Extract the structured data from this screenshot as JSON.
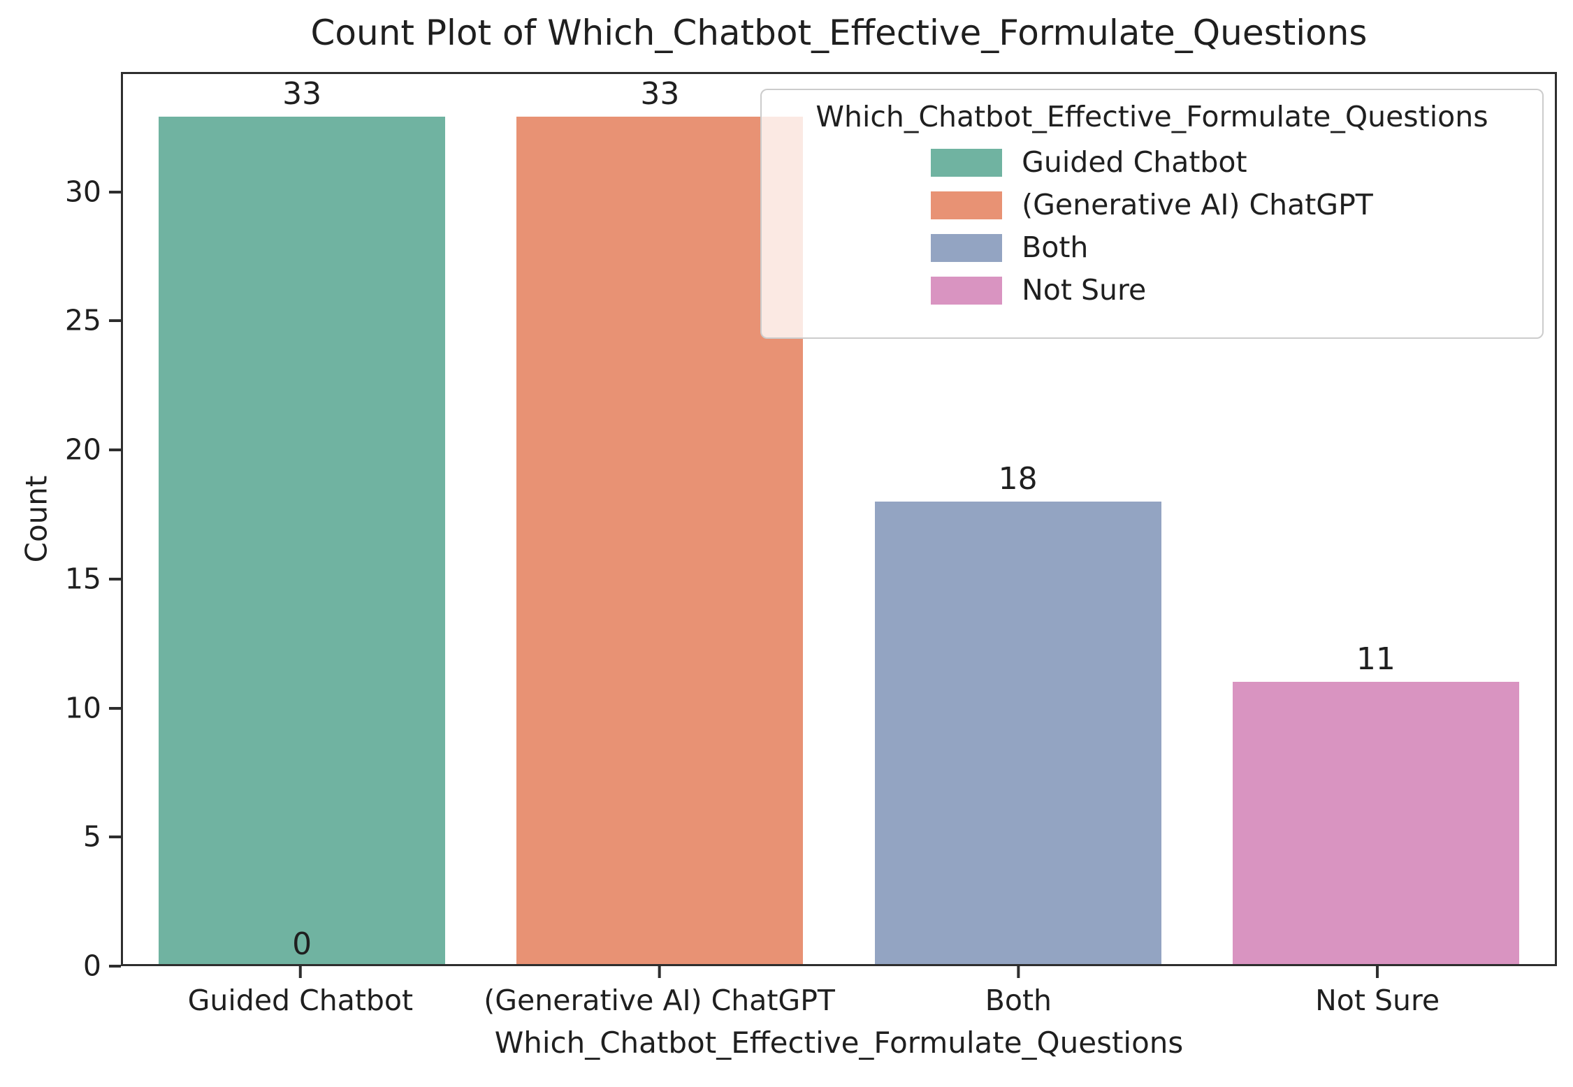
{
  "chart_data": {
    "type": "bar",
    "title": "Count Plot of Which_Chatbot_Effective_Formulate_Questions",
    "xlabel": "Which_Chatbot_Effective_Formulate_Questions",
    "ylabel": "Count",
    "categories": [
      "Guided Chatbot",
      "(Generative AI) ChatGPT",
      "Both",
      "Not Sure"
    ],
    "values": [
      33,
      33,
      18,
      11
    ],
    "bar_value_labels": [
      "33",
      "33",
      "18",
      "11"
    ],
    "annotations": [
      {
        "category_index": 0,
        "text": "0",
        "position": "above-x-axis-at-bar-center"
      }
    ],
    "bar_colors": [
      "#70b3a1",
      "#e89274",
      "#93a4c2",
      "#d994c1"
    ],
    "bar_width_fraction": 0.8,
    "ylim": [
      0,
      34.65
    ],
    "yticks": [
      0,
      5,
      10,
      15,
      20,
      25,
      30
    ],
    "grid": false,
    "spine_color": "#2e2e2e",
    "text_color": "#1f1f1f",
    "legend": {
      "position": "upper-right",
      "title": "Which_Chatbot_Effective_Formulate_Questions",
      "entries": [
        {
          "label": "Guided Chatbot",
          "color": "#70b3a1"
        },
        {
          "label": "(Generative AI) ChatGPT",
          "color": "#e89274"
        },
        {
          "label": "Both",
          "color": "#93a4c2"
        },
        {
          "label": "Not Sure",
          "color": "#d994c1"
        }
      ]
    }
  }
}
